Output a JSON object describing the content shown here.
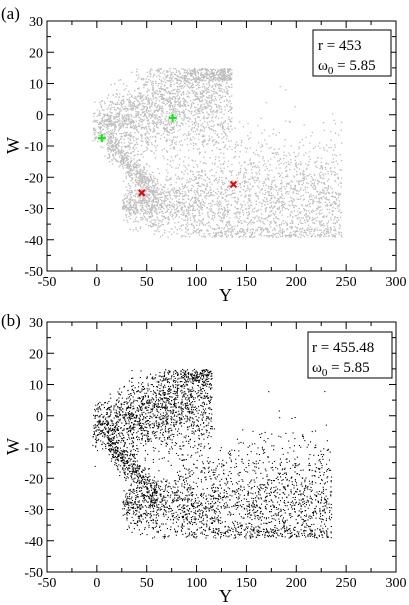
{
  "chart_data": [
    {
      "type": "scatter",
      "panel_label": "(a)",
      "xlabel": "Y",
      "ylabel": "W",
      "xlim": [
        -50,
        300
      ],
      "ylim": [
        -50,
        30
      ],
      "xticks": [
        "-50",
        "0",
        "50",
        "100",
        "150",
        "200",
        "250",
        "300"
      ],
      "yticks": [
        "30",
        "20",
        "10",
        "0",
        "-10",
        "-20",
        "-30",
        "-40",
        "-50"
      ],
      "annotation": {
        "line1": "r = 453",
        "line2_prefix": "ω",
        "line2_sub": "0",
        "line2_suffix": " = 5.85"
      },
      "point_color": "#bdbdbd",
      "grid": false,
      "markers": [
        {
          "symbol": "plus",
          "x": 5,
          "y": -7.5,
          "color": "#00ee00"
        },
        {
          "symbol": "plus",
          "x": 76,
          "y": -1,
          "color": "#00ee00"
        },
        {
          "symbol": "cross",
          "x": 45,
          "y": -25,
          "color": "#ee0000"
        },
        {
          "symbol": "cross",
          "x": 137,
          "y": -22.3,
          "color": "#ee0000"
        }
      ]
    },
    {
      "type": "scatter",
      "panel_label": "(b)",
      "xlabel": "Y",
      "ylabel": "W",
      "xlim": [
        -50,
        300
      ],
      "ylim": [
        -50,
        30
      ],
      "xticks": [
        "-50",
        "0",
        "50",
        "100",
        "150",
        "200",
        "250",
        "300"
      ],
      "yticks": [
        "30",
        "20",
        "10",
        "0",
        "-10",
        "-20",
        "-30",
        "-40",
        "-50"
      ],
      "annotation": {
        "line1": "r = 455.48",
        "line2_prefix": "ω",
        "line2_sub": "0",
        "line2_suffix": " = 5.85"
      },
      "point_color": "#000000",
      "grid": false,
      "markers": []
    }
  ]
}
